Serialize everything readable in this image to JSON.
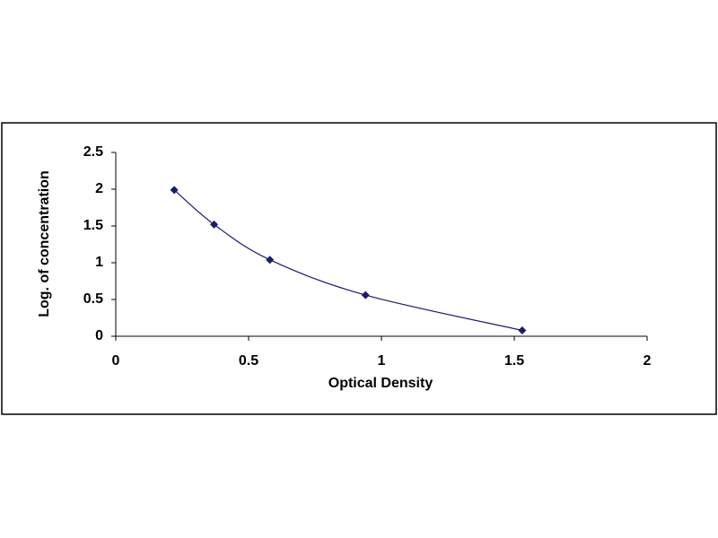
{
  "chart_data": {
    "type": "scatter",
    "x_label": "Optical Density",
    "y_label": "Log. of concentration",
    "x": [
      0.22,
      0.37,
      0.58,
      0.94,
      1.53
    ],
    "values": [
      1.99,
      1.52,
      1.04,
      0.56,
      0.08
    ],
    "color": "#1a1a6e",
    "line": true,
    "smooth": true,
    "xlim": [
      0,
      2
    ],
    "xticks": [
      0,
      0.5,
      1,
      1.5,
      2
    ],
    "ylim": [
      0,
      2.5
    ],
    "yticks": [
      0,
      0.5,
      1,
      1.5,
      2,
      2.5
    ],
    "grid": false
  }
}
